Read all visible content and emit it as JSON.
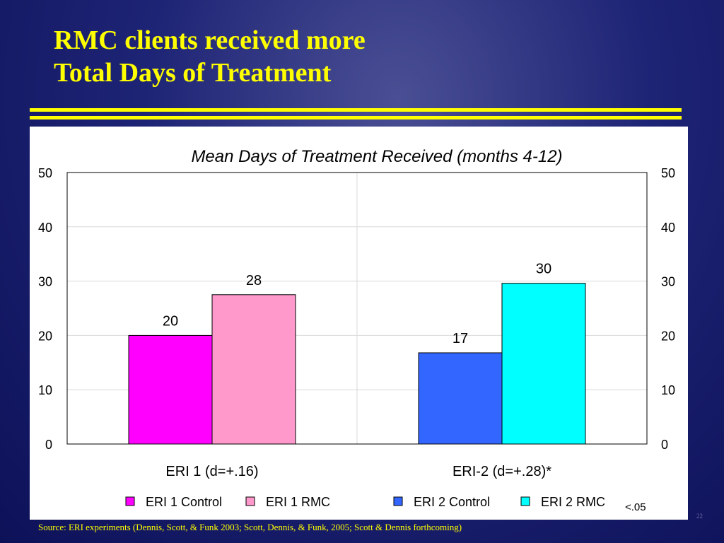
{
  "slide": {
    "title_lines": [
      "RMC clients received more",
      "Total Days of Treatment"
    ],
    "source": "Source: ERI experiments (Dennis, Scott, & Funk 2003; Scott, Dennis, & Funk, 2005; Scott & Dennis forthcoming)",
    "page_number": "22",
    "footnote": "<.05"
  },
  "colors": {
    "background": "#1e2475",
    "title": "#ffff00",
    "rule": "#ffff00"
  },
  "chart_data": {
    "type": "bar",
    "title": "Mean Days of Treatment Received (months 4-12)",
    "categories": [
      "ERI 1 (d=+.16)",
      "ERI-2 (d=+.28)*"
    ],
    "series": [
      {
        "name": "ERI 1 Control",
        "color": "#ff00ff",
        "values": [
          20,
          null
        ],
        "labels": [
          "20",
          null
        ]
      },
      {
        "name": "ERI 1 RMC",
        "color": "#ff99cc",
        "values": [
          27.5,
          null
        ],
        "labels": [
          "28",
          null
        ]
      },
      {
        "name": "ERI 2 Control",
        "color": "#3366ff",
        "values": [
          null,
          16.8
        ],
        "labels": [
          null,
          "17"
        ]
      },
      {
        "name": "ERI 2 RMC",
        "color": "#00ffff",
        "values": [
          null,
          29.6
        ],
        "labels": [
          null,
          "30"
        ]
      }
    ],
    "ylim": [
      0,
      50
    ],
    "yticks": [
      0,
      10,
      20,
      30,
      40,
      50
    ],
    "secondary_y_axis": true,
    "grid": true,
    "legend": "bottom"
  }
}
